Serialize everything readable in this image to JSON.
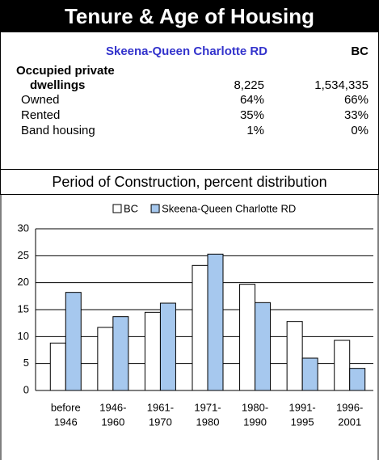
{
  "header": {
    "title": "Tenure & Age of Housing"
  },
  "table": {
    "columns": [
      "Skeena-Queen Charlotte RD",
      "BC"
    ],
    "rows": [
      {
        "label": "Occupied private dwellings",
        "values": [
          "8,225",
          "1,534,335"
        ]
      },
      {
        "label": "Owned",
        "values": [
          "64%",
          "66%"
        ]
      },
      {
        "label": "Rented",
        "values": [
          "35%",
          "33%"
        ]
      },
      {
        "label": "Band housing",
        "values": [
          "1%",
          "0%"
        ]
      }
    ]
  },
  "chart_data": {
    "type": "bar",
    "title": "Period of Construction, percent distribution",
    "categories": [
      [
        "before",
        "1946"
      ],
      [
        "1946-",
        "1960"
      ],
      [
        "1961-",
        "1970"
      ],
      [
        "1971-",
        "1980"
      ],
      [
        "1980-",
        "1990"
      ],
      [
        "1991-",
        "1995"
      ],
      [
        "1996-",
        "2001"
      ]
    ],
    "series": [
      {
        "name": "BC",
        "color": "#ffffff",
        "values": [
          8.8,
          11.7,
          14.5,
          23.2,
          19.7,
          12.8,
          9.3
        ]
      },
      {
        "name": "Skeena-Queen Charlotte RD",
        "color": "#a6c8ee",
        "values": [
          18.2,
          13.7,
          16.2,
          25.3,
          16.3,
          6.0,
          4.1
        ]
      }
    ],
    "ylim": [
      0,
      30
    ],
    "yticks": [
      0,
      5,
      10,
      15,
      20,
      25,
      30
    ],
    "grid": true,
    "legend": "top"
  }
}
